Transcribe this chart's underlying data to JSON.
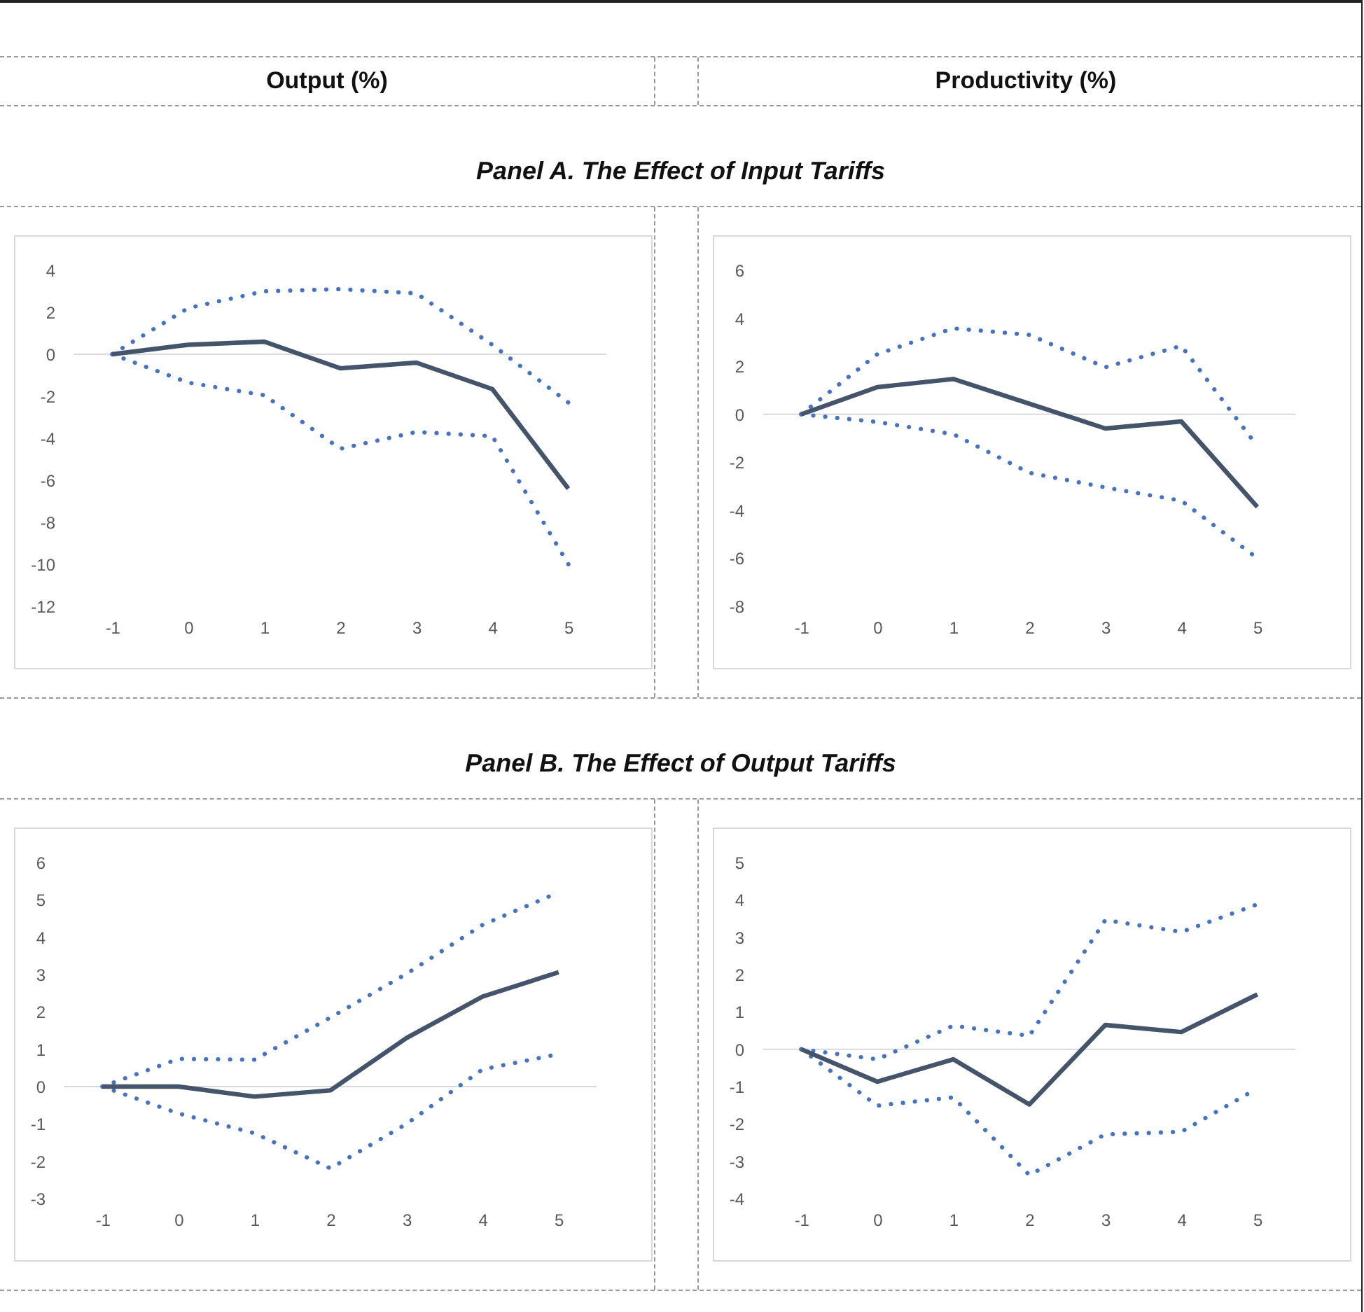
{
  "chart_data": [
    {
      "type": "line",
      "title": "Output (%)",
      "subtitle": "Panel A. The Effect of Input Tariffs",
      "categories": [
        "-1",
        "0",
        "1",
        "2",
        "3",
        "4",
        "5"
      ],
      "ylim": [
        -12,
        4
      ],
      "yticks": [
        -12,
        -10,
        -8,
        -6,
        -4,
        -2,
        0,
        2,
        4
      ],
      "grid": false,
      "marker": "none",
      "ref_lines": [
        {
          "axis": "y",
          "value": 0,
          "color": "#d9d9d9"
        }
      ],
      "series": [
        {
          "color": "#4472c4",
          "line_style": "dotted",
          "values": [
            0,
            2.2,
            3.0,
            3.1,
            2.9,
            0.45,
            -2.3
          ]
        },
        {
          "color": "#4472c4",
          "line_style": "dotted",
          "values": [
            0,
            -1.35,
            -1.95,
            -4.5,
            -3.7,
            -3.9,
            -10.0
          ]
        },
        {
          "color": "#44546a",
          "line_style": "solid",
          "values": [
            0,
            0.45,
            0.6,
            -0.67,
            -0.4,
            -1.66,
            -6.4
          ]
        }
      ]
    },
    {
      "type": "line",
      "title": "Productivity (%)",
      "categories": [
        "-1",
        "0",
        "1",
        "2",
        "3",
        "4",
        "5"
      ],
      "ylim": [
        -8,
        6
      ],
      "yticks": [
        -8,
        -6,
        -4,
        -2,
        0,
        2,
        4,
        6
      ],
      "grid": false,
      "marker": "none",
      "ref_lines": [
        {
          "axis": "y",
          "value": 0,
          "color": "#d9d9d9"
        }
      ],
      "series": [
        {
          "color": "#4472c4",
          "line_style": "dotted",
          "values": [
            0,
            2.5,
            3.58,
            3.31,
            1.96,
            2.85,
            -1.33
          ]
        },
        {
          "color": "#4472c4",
          "line_style": "dotted",
          "values": [
            0,
            -0.32,
            -0.83,
            -2.44,
            -3.05,
            -3.6,
            -6.0
          ]
        },
        {
          "color": "#44546a",
          "line_style": "solid",
          "values": [
            0,
            1.13,
            1.47,
            0.44,
            -0.59,
            -0.3,
            -3.86
          ]
        }
      ]
    },
    {
      "type": "line",
      "subtitle": "Panel B. The Effect of Output Tariffs",
      "categories": [
        "-1",
        "0",
        "1",
        "2",
        "3",
        "4",
        "5"
      ],
      "ylim": [
        -3,
        6
      ],
      "yticks": [
        -3,
        -2,
        -1,
        0,
        1,
        2,
        3,
        4,
        5,
        6
      ],
      "grid": false,
      "marker": "none",
      "ref_lines": [
        {
          "axis": "y",
          "value": 0,
          "color": "#d9d9d9"
        }
      ],
      "series": [
        {
          "color": "#4472c4",
          "line_style": "dotted",
          "values": [
            0,
            0.74,
            0.72,
            1.85,
            3.02,
            4.33,
            5.2
          ]
        },
        {
          "color": "#4472c4",
          "line_style": "dotted",
          "values": [
            0,
            -0.72,
            -1.25,
            -2.19,
            -1.0,
            0.46,
            0.87
          ]
        },
        {
          "color": "#44546a",
          "line_style": "solid",
          "values": [
            0,
            0,
            -0.27,
            -0.1,
            1.3,
            2.41,
            3.06
          ]
        }
      ]
    },
    {
      "type": "line",
      "categories": [
        "-1",
        "0",
        "1",
        "2",
        "3",
        "4",
        "5"
      ],
      "ylim": [
        -4,
        5
      ],
      "yticks": [
        -4,
        -3,
        -2,
        -1,
        0,
        1,
        2,
        3,
        4,
        5
      ],
      "grid": false,
      "marker": "none",
      "ref_lines": [
        {
          "axis": "y",
          "value": 0,
          "color": "#d9d9d9"
        }
      ],
      "series": [
        {
          "color": "#4472c4",
          "line_style": "dotted",
          "values": [
            0,
            -0.27,
            0.63,
            0.36,
            3.46,
            3.14,
            3.88
          ]
        },
        {
          "color": "#4472c4",
          "line_style": "dotted",
          "values": [
            0,
            -1.51,
            -1.29,
            -3.37,
            -2.28,
            -2.21,
            -1.05
          ]
        },
        {
          "color": "#44546a",
          "line_style": "solid",
          "values": [
            0,
            -0.87,
            -0.27,
            -1.48,
            0.65,
            0.46,
            1.47
          ]
        }
      ]
    }
  ]
}
